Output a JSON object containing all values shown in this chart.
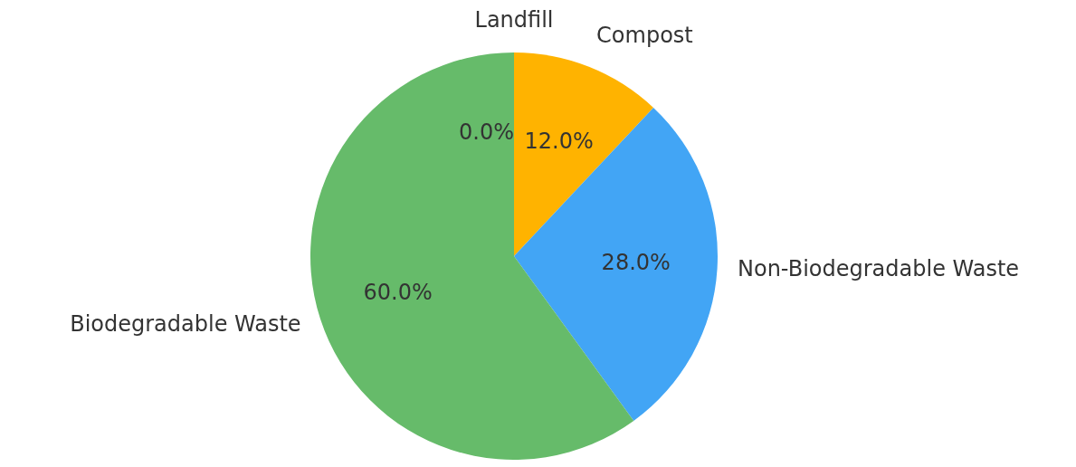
{
  "chart_data": {
    "type": "pie",
    "categories": [
      "Landfill",
      "Compost",
      "Non-Biodegradable Waste",
      "Biodegradable Waste"
    ],
    "values": [
      0,
      12,
      28,
      60
    ],
    "colors": [
      "#ef5350",
      "#ffb300",
      "#42a5f5",
      "#66bb6a"
    ],
    "value_labels": [
      "0.0%",
      "12.0%",
      "28.0%",
      "60.0%"
    ],
    "legend": false
  }
}
